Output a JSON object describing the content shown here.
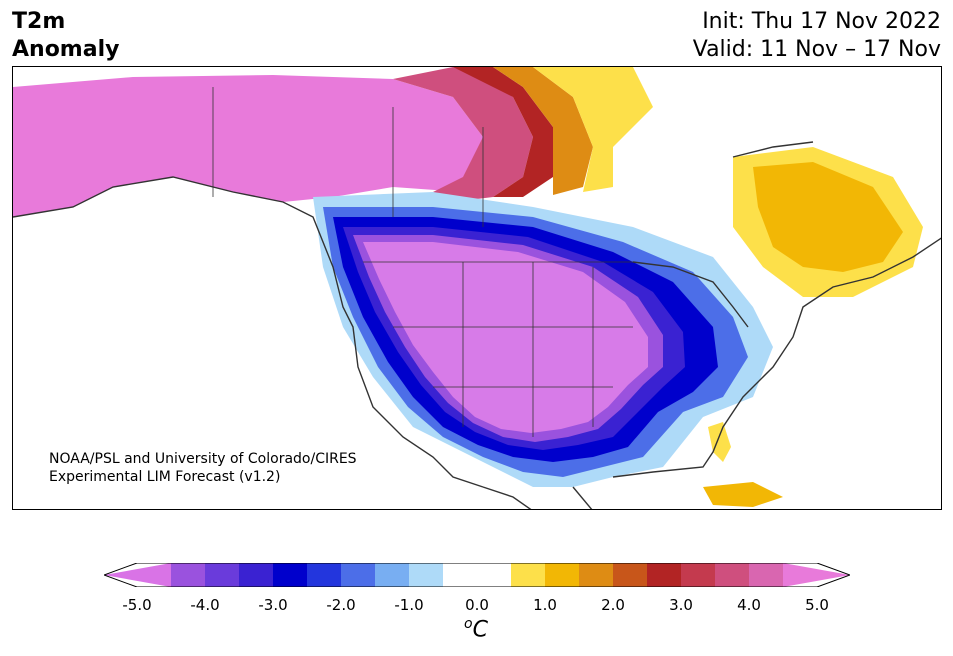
{
  "header": {
    "title_line1": "T2m",
    "title_line2": "Anomaly",
    "init": "Init: Thu 17 Nov 2022",
    "valid": "Valid: 11 Nov – 17 Nov"
  },
  "credit": {
    "line1": "NOAA/PSL and University of Colorado/CIRES",
    "line2": "Experimental LIM Forecast (v1.2)"
  },
  "colorbar": {
    "units_base": "C",
    "units_sup": "o",
    "ticks": [
      "-5.0",
      "-4.0",
      "-3.0",
      "-2.0",
      "-1.0",
      "0.0",
      "1.0",
      "2.0",
      "3.0",
      "4.0",
      "5.0"
    ],
    "colors": [
      "#d973e6",
      "#9a52de",
      "#6a3bdb",
      "#3a22d2",
      "#0000cc",
      "#2336dd",
      "#4c6ee8",
      "#78aef2",
      "#aedaf8",
      "#ffffff",
      "#ffffff",
      "#fde04a",
      "#f2b705",
      "#de8c14",
      "#c8561a",
      "#b22424",
      "#c43a4e",
      "#cf4f7e",
      "#d966b0",
      "#e87ada"
    ]
  },
  "map_colors": {
    "cold_core": "#d77be8",
    "cold_1": "#9a52de",
    "cold_2": "#3a22d2",
    "cold_3": "#0000cc",
    "cold_4": "#4c6ee8",
    "cold_5": "#aedaf8",
    "warm_1": "#fde04a",
    "warm_2": "#f2b705",
    "warm_3": "#de8c14",
    "warm_4": "#b22424",
    "warm_5": "#cf4f7e",
    "warm_core": "#e87ada",
    "coast": "#333333"
  }
}
